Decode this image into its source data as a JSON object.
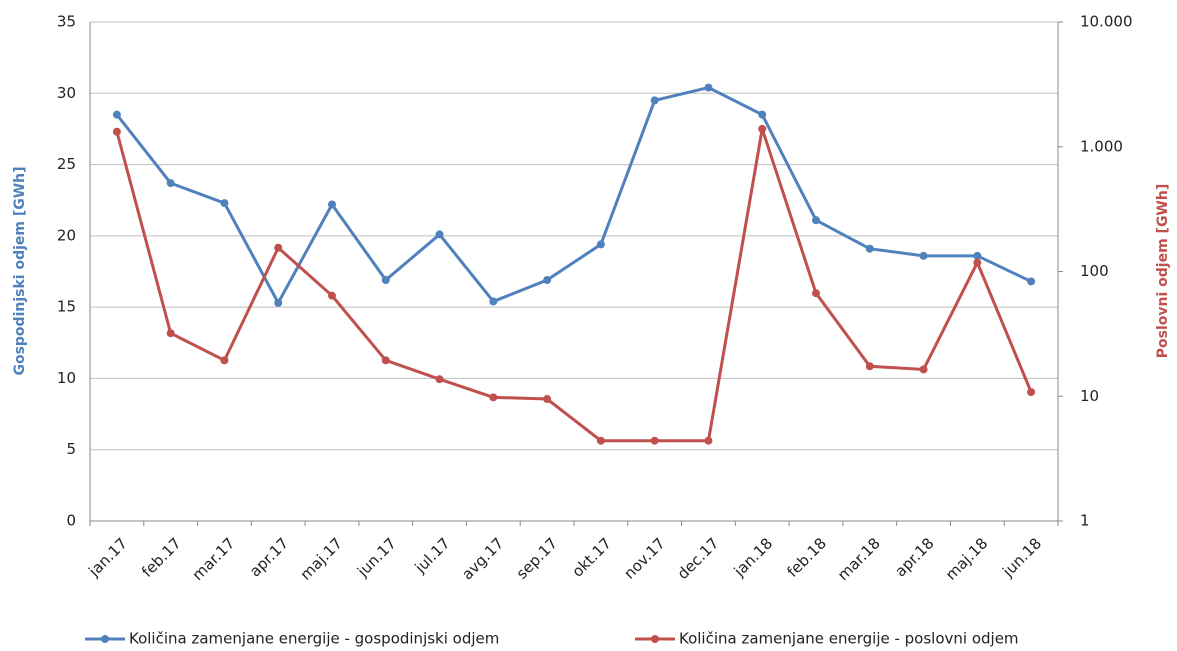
{
  "chart_data": {
    "type": "line",
    "categories": [
      "jan.17",
      "feb.17",
      "mar.17",
      "apr.17",
      "maj.17",
      "jun.17",
      "jul.17",
      "avg.17",
      "sep.17",
      "okt.17",
      "nov.17",
      "dec.17",
      "jan.18",
      "feb.18",
      "mar.18",
      "apr.18",
      "maj.18",
      "jun.18"
    ],
    "y_label": "Gospodinjski odjem [GWh]",
    "y2_label": "Poslovni odjem [GWh]",
    "ylim": [
      0,
      35
    ],
    "yticks": [
      0,
      5,
      10,
      15,
      20,
      25,
      30,
      35
    ],
    "y2lim": [
      1,
      10000
    ],
    "y2scale": "log",
    "y2ticks": [
      1,
      10,
      100,
      {
        "value": 1000,
        "label": "1.000"
      },
      {
        "value": 10000,
        "label": "10.000"
      }
    ],
    "grid": true,
    "legend": "bottom",
    "series": [
      {
        "name": "Količina zamenjane energije - gospodinjski odjem",
        "color": "#4f81bd",
        "values": [
          28.5,
          23.7,
          22.3,
          15.3,
          22.2,
          16.9,
          20.1,
          15.4,
          16.9,
          19.4,
          29.5,
          30.4,
          28.5,
          21.1,
          19.1,
          18.6,
          18.6,
          16.8
        ]
      },
      {
        "name": "Količina zamenjane energije - poslovni odjem",
        "color": "#c0504d",
        "axis": "y2",
        "values": [
          1320,
          32,
          19.4,
          155,
          64,
          19.4,
          13.7,
          9.8,
          9.5,
          4.4,
          4.4,
          4.4,
          1390,
          67,
          17.4,
          16.4,
          118,
          10.8
        ]
      }
    ]
  }
}
